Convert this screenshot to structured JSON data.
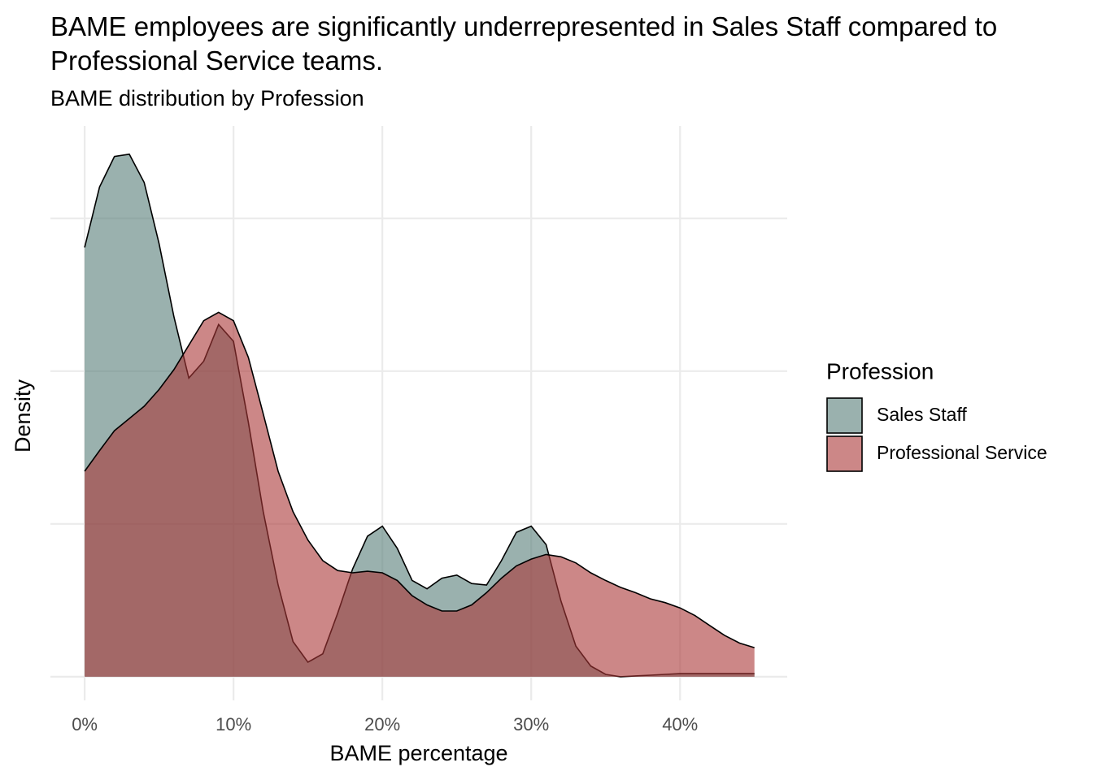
{
  "chart_data": {
    "type": "density",
    "title": "BAME employees are significantly underrepresented in Sales Staff compared to Professional Service teams.",
    "subtitle": "BAME distribution by Profession",
    "x_label": "BAME percentage",
    "y_label": "Density",
    "legend_title": "Profession",
    "legend_position": "right",
    "grid": true,
    "alpha": 0.6,
    "xlim": [
      -2.3,
      47.2
    ],
    "ylim": [
      -0.0031,
      0.0721
    ],
    "xticks": [
      {
        "value": 0,
        "label": "0%"
      },
      {
        "value": 10,
        "label": "10%"
      },
      {
        "value": 20,
        "label": "20%"
      },
      {
        "value": 30,
        "label": "30%"
      },
      {
        "value": 40,
        "label": "40%"
      }
    ],
    "yticks": [
      0,
      0.02,
      0.04,
      0.06
    ],
    "x": [
      0,
      1,
      2,
      3,
      4,
      5,
      6,
      7,
      8,
      9,
      10,
      11,
      12,
      13,
      14,
      15,
      16,
      17,
      18,
      19,
      20,
      21,
      22,
      23,
      24,
      25,
      26,
      27,
      28,
      29,
      30,
      31,
      32,
      33,
      34,
      35,
      36,
      37,
      38,
      39,
      40,
      41,
      42,
      43,
      44,
      45
    ],
    "series": [
      {
        "name": "Sales Staff",
        "color": "#577d78",
        "values": [
          0.0562,
          0.0641,
          0.0681,
          0.0684,
          0.0647,
          0.0567,
          0.0471,
          0.0391,
          0.0413,
          0.0461,
          0.0439,
          0.0333,
          0.0216,
          0.012,
          0.0046,
          0.0019,
          0.003,
          0.0083,
          0.0141,
          0.0184,
          0.0197,
          0.0168,
          0.0126,
          0.0115,
          0.0129,
          0.0133,
          0.0122,
          0.012,
          0.0152,
          0.0189,
          0.0197,
          0.0173,
          0.0099,
          0.004,
          0.0014,
          0.0003,
          0,
          0.0001,
          0.0002,
          0.0003,
          0.0004,
          0.0004,
          0.0004,
          0.0004,
          0.0004,
          0.0004
        ]
      },
      {
        "name": "Professional Service",
        "color": "#aa3737",
        "values": [
          0.0269,
          0.0296,
          0.0322,
          0.0338,
          0.0354,
          0.0376,
          0.0402,
          0.0434,
          0.0466,
          0.0477,
          0.0466,
          0.0418,
          0.0344,
          0.0269,
          0.0216,
          0.0179,
          0.0152,
          0.0139,
          0.0136,
          0.0138,
          0.0136,
          0.0126,
          0.0106,
          0.0094,
          0.0086,
          0.0086,
          0.0094,
          0.011,
          0.0129,
          0.0145,
          0.0154,
          0.016,
          0.0157,
          0.0149,
          0.0136,
          0.0126,
          0.0117,
          0.011,
          0.0102,
          0.0097,
          0.009,
          0.008,
          0.0067,
          0.0054,
          0.0044,
          0.0038
        ]
      }
    ]
  }
}
